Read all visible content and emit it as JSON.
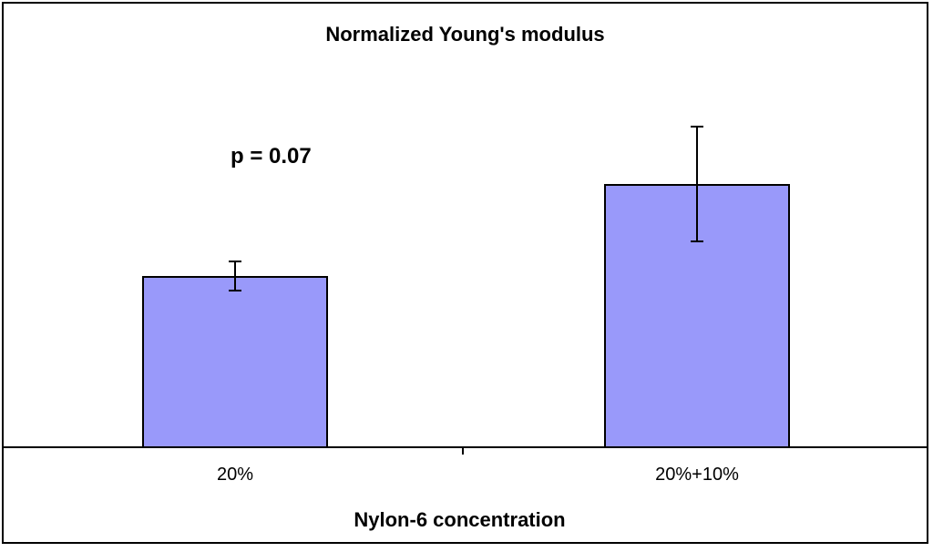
{
  "chart_data": {
    "type": "bar",
    "title": "Normalized Young's modulus",
    "xlabel": "Nylon-6 concentration",
    "ylabel": "",
    "categories": [
      "20%",
      "20%+10%"
    ],
    "values": [
      1.0,
      1.54
    ],
    "errors": [
      0.085,
      0.335
    ],
    "annotation": {
      "text": "p = 0.07",
      "near_category": "20%"
    },
    "bar_color": "#9999FA",
    "bar_border_color": "#000000",
    "error_bar_color": "#000000",
    "background_color": "#FFFFFF",
    "frame_color": "#000000",
    "grid": false,
    "legend": "none",
    "y_axis": "hidden",
    "ylim": [
      0,
      2.6
    ]
  }
}
